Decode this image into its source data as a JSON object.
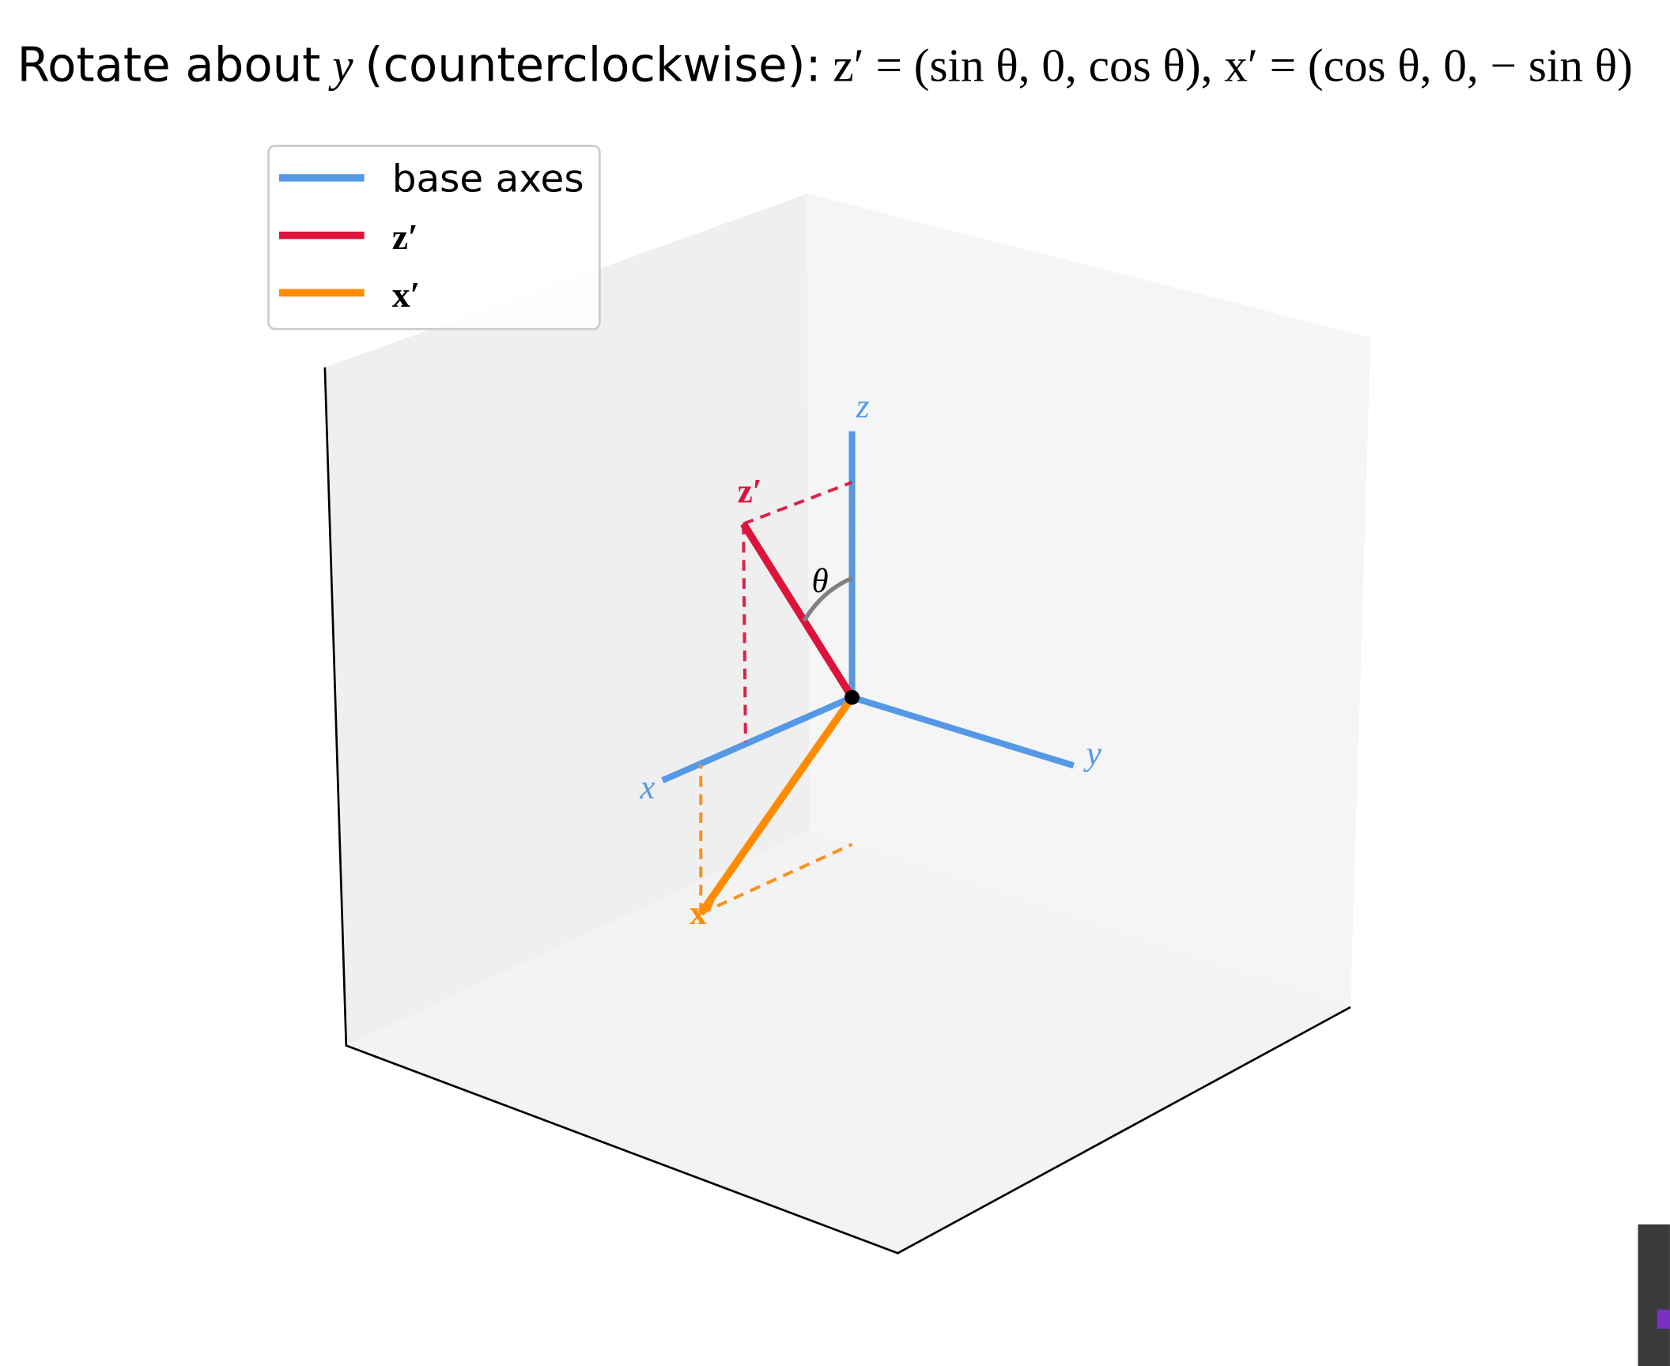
{
  "title": {
    "prefix": "Rotate about",
    "axis": "y",
    "mode": "(counterclockwise):",
    "formula_z": "z′ = (sin θ, 0, cos θ),",
    "formula_x": "x′ = (cos θ, 0, − sin θ)"
  },
  "legend": {
    "items": [
      "base axes",
      "z′",
      "x′"
    ]
  },
  "labels": {
    "x": "x",
    "y": "y",
    "z": "z",
    "z_prime": "z′",
    "x_prime": "x′",
    "theta": "θ"
  }
}
